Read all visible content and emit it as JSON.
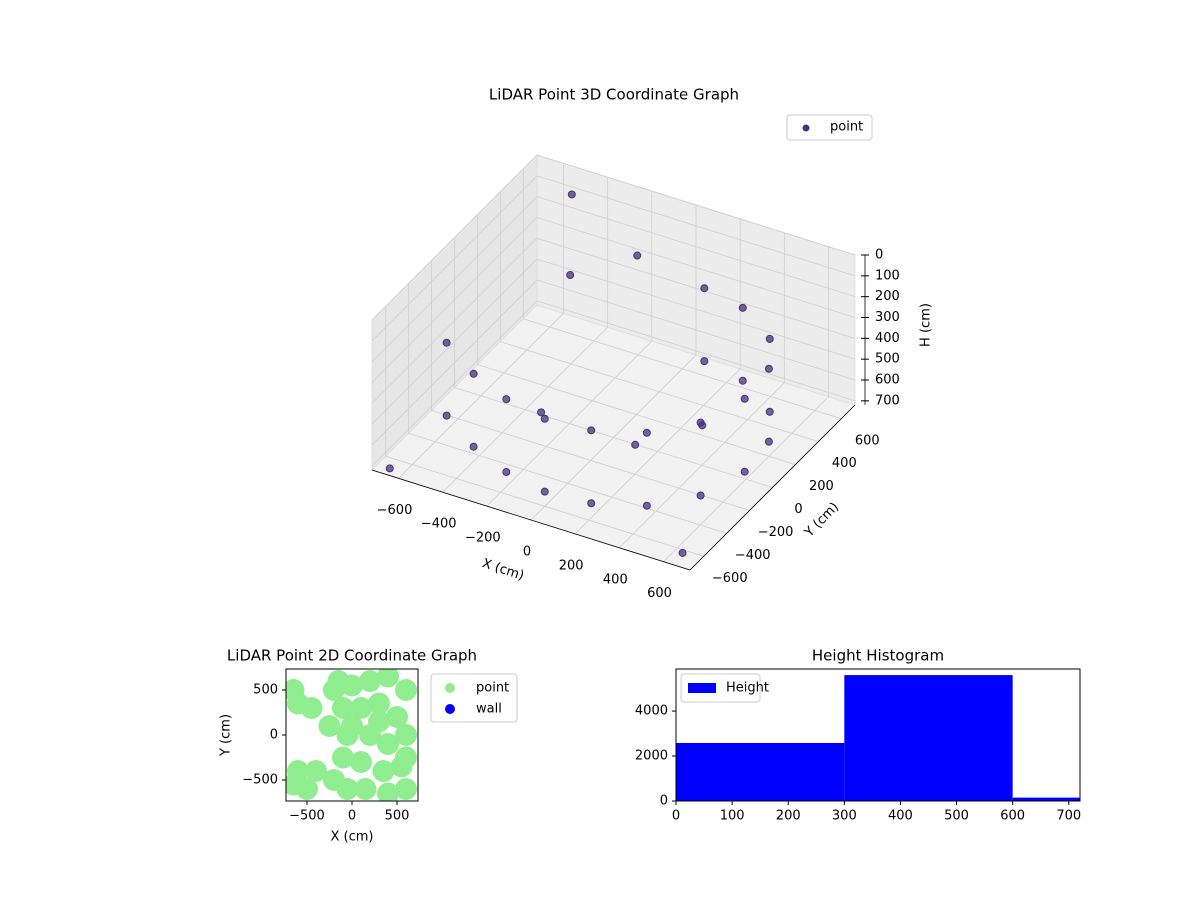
{
  "chart_data": [
    {
      "type": "scatter3d",
      "title": "LiDAR Point 3D Coordinate Graph",
      "xlabel": "X (cm)",
      "ylabel": "Y (cm)",
      "zlabel": "H (cm)",
      "xlim": [
        -720,
        720
      ],
      "ylim": [
        -720,
        720
      ],
      "zlim": [
        0,
        720
      ],
      "z_inverted": true,
      "xticks": [
        {
          "value": -600,
          "label": "−600"
        },
        {
          "value": -400,
          "label": "−400"
        },
        {
          "value": -200,
          "label": "−200"
        },
        0,
        200,
        400,
        600
      ],
      "yticks": [
        {
          "value": -600,
          "label": "−600"
        },
        {
          "value": -400,
          "label": "−400"
        },
        {
          "value": -200,
          "label": "−200"
        },
        0,
        200,
        400,
        600
      ],
      "zticks": [
        0,
        100,
        200,
        300,
        400,
        500,
        600,
        700
      ],
      "grid": true,
      "legend": "upper right",
      "series": [
        {
          "name": "point",
          "color": "#45337c",
          "x": [
            -600,
            -400,
            -200,
            0,
            200,
            400,
            550,
            620,
            600,
            500,
            300,
            100,
            -600,
            -400,
            -200,
            0,
            200,
            400,
            550,
            620,
            600,
            500,
            300,
            100,
            -650,
            -500,
            650,
            -300,
            -100,
            -250,
            150,
            350
          ],
          "y": [
            -300,
            -450,
            -550,
            -600,
            -580,
            -480,
            -300,
            -50,
            200,
            400,
            550,
            600,
            -300,
            -450,
            -550,
            -600,
            -580,
            -480,
            -300,
            -50,
            200,
            400,
            550,
            600,
            -700,
            600,
            -650,
            200,
            400,
            -150,
            -100,
            100
          ],
          "z": [
            300,
            300,
            300,
            300,
            300,
            300,
            300,
            300,
            300,
            300,
            300,
            300,
            650,
            650,
            650,
            650,
            650,
            650,
            650,
            650,
            650,
            650,
            650,
            650,
            700,
            50,
            700,
            150,
            100,
            600,
            650,
            600
          ]
        }
      ]
    },
    {
      "type": "scatter",
      "title": "LiDAR Point 2D Coordinate Graph",
      "xlabel": "X (cm)",
      "ylabel": "Y (cm)",
      "xlim": [
        -733,
        733
      ],
      "ylim": [
        -733,
        733
      ],
      "xticks": [
        {
          "value": -500,
          "label": "−500"
        },
        0,
        500
      ],
      "yticks": [
        {
          "value": -500,
          "label": "−500"
        },
        0,
        500
      ],
      "legend": "outside right",
      "series": [
        {
          "name": "point",
          "color": "#90ee90",
          "x": [
            -650,
            -600,
            -450,
            -400,
            -600,
            -650,
            -500,
            -150,
            0,
            200,
            400,
            600,
            -100,
            100,
            300,
            500,
            600,
            -50,
            200,
            400,
            -100,
            100,
            350,
            550,
            150,
            400,
            600,
            0,
            300,
            600,
            -200,
            -250,
            -200,
            -50
          ],
          "y": [
            500,
            350,
            300,
            -400,
            -400,
            -550,
            -600,
            600,
            550,
            600,
            650,
            500,
            300,
            300,
            350,
            200,
            0,
            0,
            0,
            -100,
            -250,
            -300,
            -400,
            -350,
            -600,
            -650,
            -600,
            100,
            150,
            -250,
            500,
            100,
            -500,
            -600
          ]
        },
        {
          "name": "wall",
          "color": "#0000ff",
          "x": [],
          "y": []
        }
      ]
    },
    {
      "type": "histogram",
      "title": "Height Histogram",
      "bins": [
        0,
        300,
        600,
        720
      ],
      "xlim": [
        0,
        720
      ],
      "ylim": [
        0,
        5870
      ],
      "xticks": [
        0,
        100,
        200,
        300,
        400,
        500,
        600,
        700
      ],
      "yticks": [
        0,
        2000,
        4000
      ],
      "legend": "upper left",
      "series": [
        {
          "name": "Height",
          "color": "#0000ff",
          "values": [
            2580,
            5600,
            150
          ]
        }
      ]
    }
  ]
}
